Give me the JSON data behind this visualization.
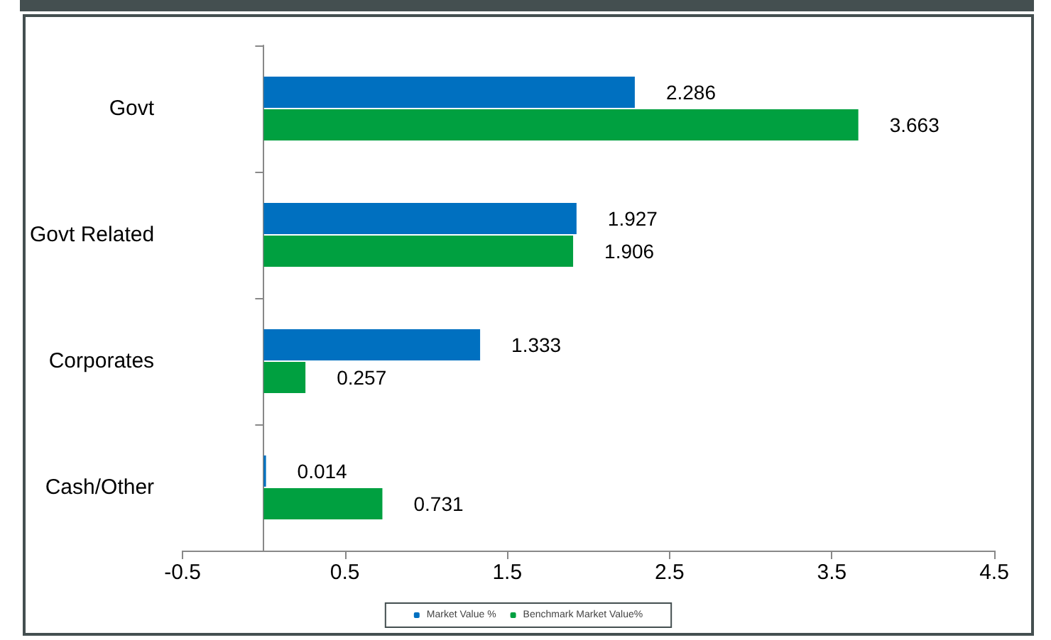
{
  "chart_data": {
    "type": "bar",
    "orientation": "horizontal",
    "categories": [
      "Govt",
      "Govt Related",
      "Corporates",
      "Cash/Other"
    ],
    "series": [
      {
        "name": "Market Value %",
        "color": "#0070c0",
        "values": [
          2.286,
          1.927,
          1.333,
          0.014
        ]
      },
      {
        "name": "Benchmark Market Value%",
        "color": "#00a040",
        "values": [
          3.663,
          1.906,
          0.257,
          0.731
        ]
      }
    ],
    "xlim": [
      -0.5,
      4.5
    ],
    "xticks": [
      -0.5,
      0.5,
      1.5,
      2.5,
      3.5,
      4.5
    ],
    "data_labels": true,
    "grid": false,
    "legend": "bottom"
  }
}
